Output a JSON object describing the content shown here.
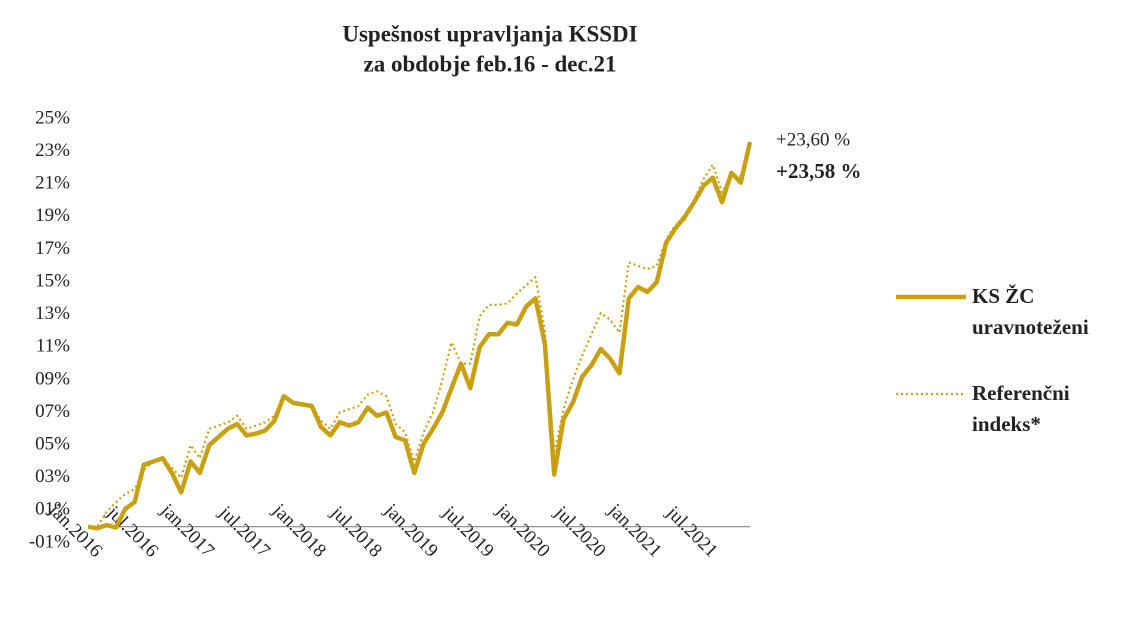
{
  "chart_data": {
    "type": "line",
    "title": "Uspešnost upravljanja KSSDI",
    "subtitle": "za obdobje feb.16 - dec.21",
    "categories": [
      "jan.2016",
      null,
      null,
      null,
      null,
      null,
      "jul.2016",
      null,
      null,
      null,
      null,
      null,
      "jan.2017",
      null,
      null,
      null,
      null,
      null,
      "jul.2017",
      null,
      null,
      null,
      null,
      null,
      "jan.2018",
      null,
      null,
      null,
      null,
      null,
      "jul.2018",
      null,
      null,
      null,
      null,
      null,
      "jan.2019",
      null,
      null,
      null,
      null,
      null,
      "jul.2019",
      null,
      null,
      null,
      null,
      null,
      "jan.2020",
      null,
      null,
      null,
      null,
      null,
      "jul.2020",
      null,
      null,
      null,
      null,
      null,
      "jan.2021",
      null,
      null,
      null,
      null,
      null,
      "jul.2021",
      null,
      null,
      null,
      null,
      null
    ],
    "series": [
      {
        "name": "KS ŽC uravnoteženi",
        "color": "#c9a012",
        "style": "solid",
        "values": [
          0,
          -0.1,
          0.1,
          -0.05,
          1.1,
          1.5,
          3.8,
          4.0,
          4.2,
          3.3,
          2.1,
          4.0,
          3.3,
          5.0,
          5.5,
          6.0,
          6.3,
          5.6,
          5.7,
          5.9,
          6.5,
          8.0,
          7.6,
          7.5,
          7.4,
          6.1,
          5.6,
          6.4,
          6.2,
          6.4,
          7.3,
          6.8,
          7.0,
          5.5,
          5.3,
          3.3,
          5.1,
          6.0,
          7.0,
          8.5,
          10.0,
          8.5,
          11.0,
          11.8,
          11.8,
          12.5,
          12.4,
          13.5,
          14.0,
          11.2,
          3.2,
          6.6,
          7.6,
          9.2,
          9.9,
          10.9,
          10.3,
          9.4,
          14.0,
          14.7,
          14.4,
          15.0,
          17.4,
          18.3,
          19.0,
          19.9,
          20.9,
          21.4,
          19.9,
          21.7,
          21.1,
          23.58
        ]
      },
      {
        "name": "Referenčni indeks*",
        "color": "#c9a012",
        "style": "dotted",
        "values": [
          0,
          0,
          0.9,
          1.5,
          2.0,
          2.3,
          3.5,
          4.0,
          4.2,
          3.6,
          3.0,
          5.0,
          4.2,
          6.0,
          6.2,
          6.4,
          6.8,
          6.0,
          6.2,
          6.4,
          6.8,
          7.9,
          7.6,
          7.5,
          7.4,
          6.5,
          6.0,
          7.0,
          7.2,
          7.4,
          8.1,
          8.3,
          8.0,
          6.3,
          5.8,
          4.0,
          5.8,
          7.0,
          9.0,
          11.3,
          10.0,
          10.0,
          12.9,
          13.6,
          13.6,
          13.7,
          14.3,
          14.8,
          15.3,
          12.0,
          4.5,
          7.2,
          9.0,
          10.5,
          11.8,
          13.1,
          12.7,
          11.9,
          16.2,
          16.0,
          15.8,
          16.0,
          17.6,
          18.5,
          18.8,
          20.0,
          21.3,
          22.2,
          20.5,
          21.6,
          21.5,
          23.6
        ]
      }
    ],
    "annotations": [
      {
        "text": "+23,60 %",
        "series": 1
      },
      {
        "text": "+23,58 %",
        "series": 0
      }
    ],
    "ylim": [
      -1,
      25
    ],
    "yticks": [
      {
        "value": -1,
        "label": "-01%"
      },
      {
        "value": 1,
        "label": "01%"
      },
      {
        "value": 3,
        "label": "03%"
      },
      {
        "value": 5,
        "label": "05%"
      },
      {
        "value": 7,
        "label": "07%"
      },
      {
        "value": 9,
        "label": "09%"
      },
      {
        "value": 11,
        "label": "11%"
      },
      {
        "value": 13,
        "label": "13%"
      },
      {
        "value": 15,
        "label": "15%"
      },
      {
        "value": 17,
        "label": "17%"
      },
      {
        "value": 19,
        "label": "19%"
      },
      {
        "value": 21,
        "label": "21%"
      },
      {
        "value": 23,
        "label": "23%"
      },
      {
        "value": 25,
        "label": "25%"
      }
    ],
    "grid": false,
    "legend": "right"
  }
}
